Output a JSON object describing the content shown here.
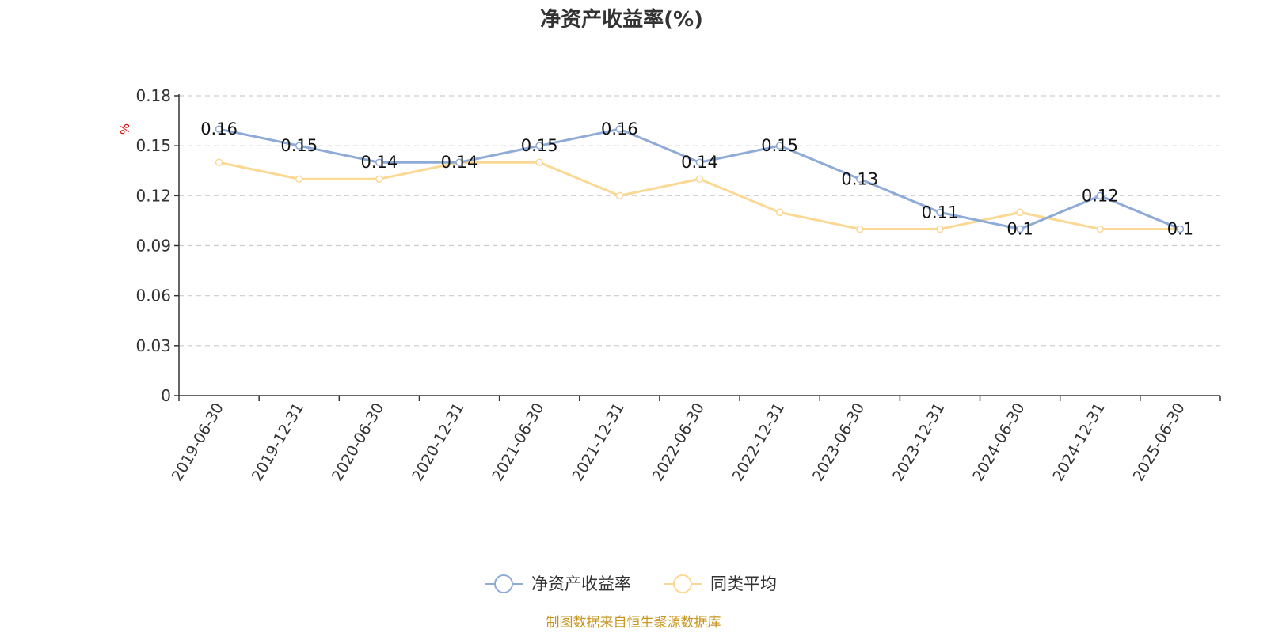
{
  "chart_data": {
    "type": "line",
    "title": "净资产收益率(%)",
    "ylabel": "%",
    "xlabel": "",
    "categories": [
      "2019-06-30",
      "2019-12-31",
      "2020-06-30",
      "2020-12-31",
      "2021-06-30",
      "2021-12-31",
      "2022-06-30",
      "2022-12-31",
      "2023-06-30",
      "2023-12-31",
      "2024-06-30",
      "2024-12-31",
      "2025-06-30"
    ],
    "ylim": [
      0,
      0.18
    ],
    "yticks": [
      "0",
      "0.03",
      "0.06",
      "0.09",
      "0.12",
      "0.15",
      "0.18"
    ],
    "grid": true,
    "legend_position": "bottom-center",
    "series": [
      {
        "name": "净资产收益率",
        "color": "#8eaad6",
        "values": [
          0.16,
          0.15,
          0.14,
          0.14,
          0.15,
          0.16,
          0.14,
          0.15,
          0.13,
          0.11,
          0.1,
          0.12,
          0.1
        ],
        "labels": [
          "0.16",
          "0.15",
          "0.14",
          "0.14",
          "0.15",
          "0.16",
          "0.14",
          "0.15",
          "0.13",
          "0.11",
          "0.1",
          "0.12",
          "0.1"
        ]
      },
      {
        "name": "同类平均",
        "color": "#fbd893",
        "values": [
          0.14,
          0.13,
          0.13,
          0.14,
          0.14,
          0.12,
          0.13,
          0.11,
          0.1,
          0.1,
          0.11,
          0.1,
          0.1
        ]
      }
    ]
  },
  "source": "制图数据来自恒生聚源数据库"
}
